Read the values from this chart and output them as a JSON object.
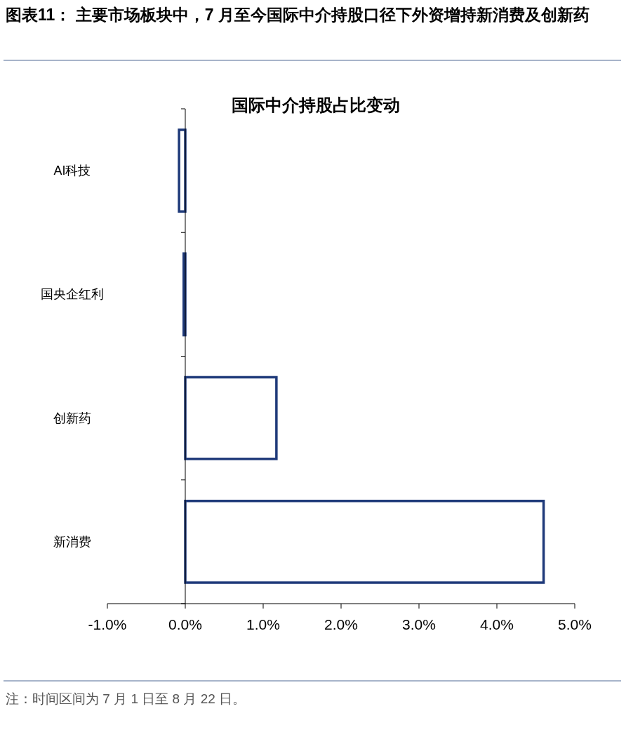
{
  "chart_data": {
    "type": "bar",
    "orientation": "horizontal",
    "title": "图表11： 主要市场板块中，7 月至今国际中介持股口径下外资增持新消费及创新药",
    "subtitle": "国际中介持股占比变动",
    "categories": [
      "AI科技",
      "国央企红利",
      "创新药",
      "新消费"
    ],
    "series": [
      {
        "color": "#1f3a7a",
        "values": [
          -0.08,
          -0.02,
          1.17,
          4.6
        ]
      }
    ],
    "xlim": [
      -1,
      5
    ],
    "xticks": [
      {
        "value": -1,
        "label": "-1.0%"
      },
      {
        "value": 0,
        "label": "0.0%"
      },
      {
        "value": 1,
        "label": "1.0%"
      },
      {
        "value": 2,
        "label": "2.0%"
      },
      {
        "value": 3,
        "label": "3.0%"
      },
      {
        "value": 4,
        "label": "4.0%"
      },
      {
        "value": 5,
        "label": "5.0%"
      }
    ],
    "annotations": [
      "注：时间区间为 7 月 1 日至 8 月 22 日。"
    ]
  }
}
